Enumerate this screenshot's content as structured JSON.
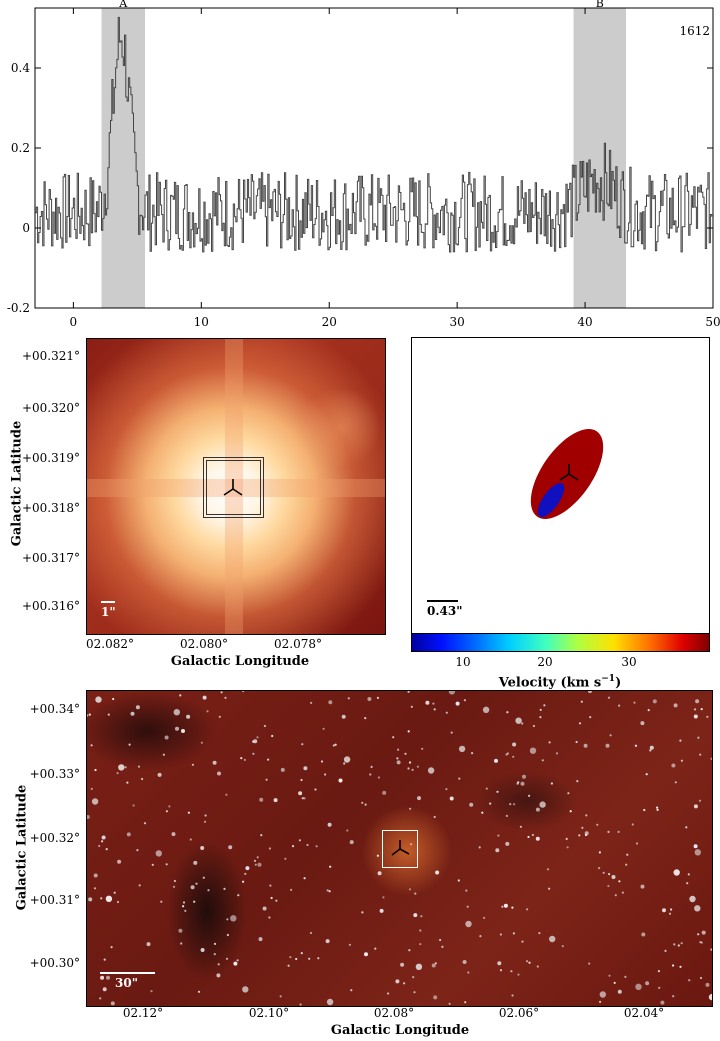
{
  "spectrum": {
    "tag": "1612",
    "x_ticks": [
      "0",
      "10",
      "20",
      "30",
      "40",
      "50"
    ],
    "y_ticks": [
      "0.4",
      "0.2",
      "0",
      "-0.2"
    ],
    "regions": [
      {
        "label": "A",
        "from": 2.2,
        "to": 5.6
      },
      {
        "label": "B",
        "from": 39.1,
        "to": 43.2
      }
    ]
  },
  "chart_data": {
    "type": "line",
    "title": "",
    "xlabel": "",
    "ylabel": "",
    "xlim": [
      -3,
      50
    ],
    "ylim": [
      -0.2,
      0.55
    ],
    "series": [
      {
        "peak_label": "A",
        "x_center": 3.7,
        "peak_value": 0.49,
        "baseline": 0.05
      },
      {
        "peak_label": "B",
        "x_center": 41,
        "peak_value": 0.2,
        "baseline": 0.05
      }
    ]
  },
  "zoom_map": {
    "y_ticks": [
      "+00.321°",
      "+00.320°",
      "+00.319°",
      "+00.318°",
      "+00.317°",
      "+00.316°"
    ],
    "x_ticks": [
      "02.082°",
      "02.080°",
      "02.078°"
    ],
    "ylabel": "Galactic Latitude",
    "xlabel": "Galactic Longitude",
    "scale_label": "1\""
  },
  "velocity_panel": {
    "scale_label": "0.43\"",
    "colorbar_ticks": [
      "10",
      "20",
      "30"
    ],
    "colorbar_label": "Velocity (km s",
    "colorbar_label_sup": "−1",
    "colorbar_label_end": ")",
    "colors": {
      "low": "#1010c0",
      "high": "#a00000"
    }
  },
  "wide_map": {
    "y_ticks": [
      "+00.34°",
      "+00.33°",
      "+00.32°",
      "+00.31°",
      "+00.30°"
    ],
    "x_ticks": [
      "02.12°",
      "02.10°",
      "02.08°",
      "02.06°",
      "02.04°"
    ],
    "ylabel": "Galactic Latitude",
    "xlabel": "Galactic Longitude",
    "scale_label": "30\""
  }
}
